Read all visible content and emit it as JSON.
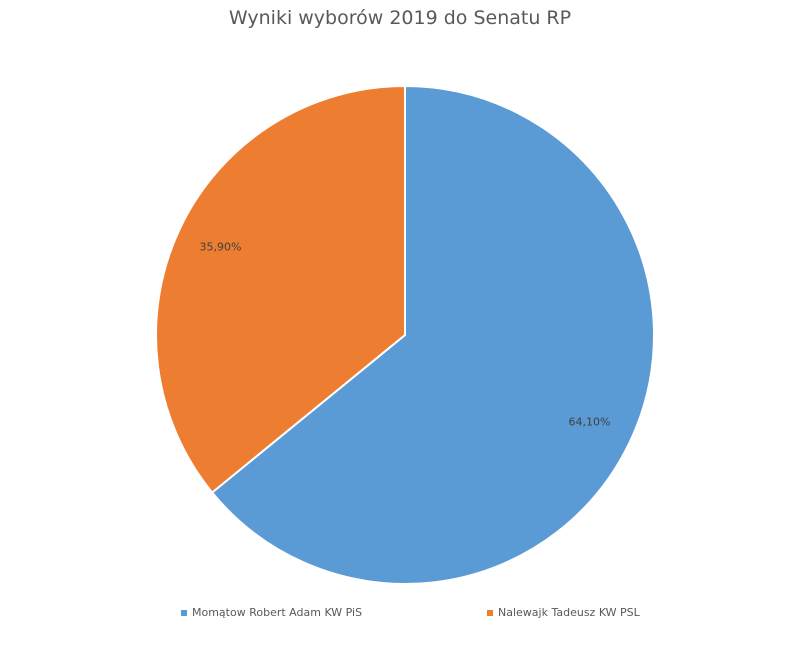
{
  "chart_data": {
    "type": "pie",
    "title": "Wyniki wyborów 2019 do Senatu RP",
    "categories": [
      "Momątow Robert Adam KW PiS",
      "Nalewajk Tadeusz KW PSL"
    ],
    "values": [
      64.1,
      35.9
    ],
    "data_labels": [
      "64,10%",
      "35,90%"
    ],
    "colors": [
      "#5b9bd5",
      "#ed7d31"
    ],
    "legend_position": "bottom"
  }
}
